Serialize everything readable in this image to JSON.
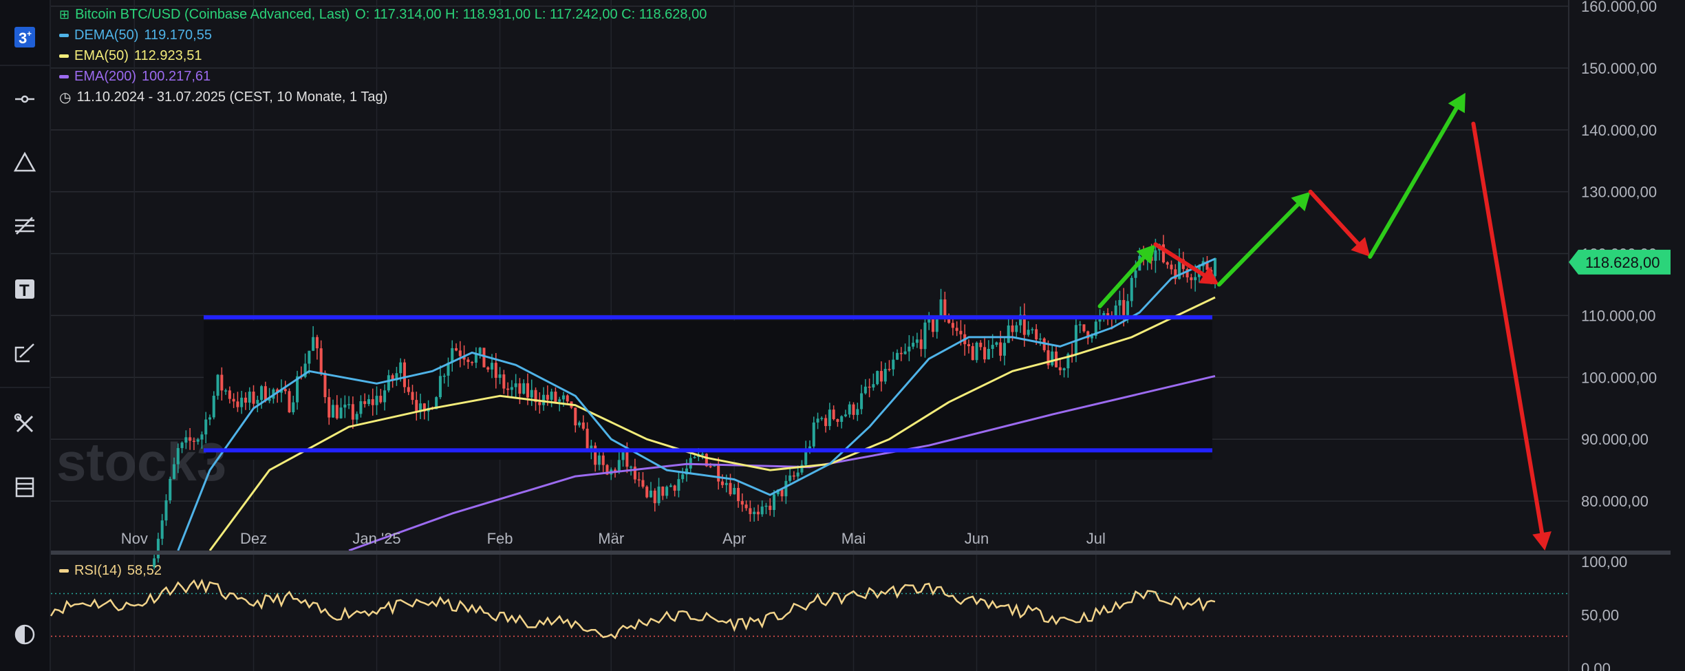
{
  "legend": {
    "title": "Bitcoin BTC/USD (Coinbase Advanced, Last)",
    "ohlc": "O: 117.314,00   H: 118.931,00   L: 117.242,00   C: 118.628,00",
    "indicators": [
      {
        "name": "DEMA(50)",
        "value": "119.170,55",
        "color": "#4fb3e8"
      },
      {
        "name": "EMA(50)",
        "value": "112.923,51",
        "color": "#f3ec7a"
      },
      {
        "name": "EMA(200)",
        "value": "100.217,61",
        "color": "#9c6bf0"
      }
    ],
    "range": "11.10.2024 - 31.07.2025   (CEST, 10 Monate, 1 Tag)"
  },
  "watermark": "stock3",
  "current_price": "118.628,00",
  "rsi_legend": {
    "name": "RSI(14)",
    "value": "58,52"
  },
  "colors": {
    "up": "#26a69a",
    "down": "#ef5350",
    "blue_line": "#2222ff",
    "arrow_green": "#2ecc1a",
    "arrow_red": "#e52020",
    "price_tag": "#2bd47a"
  },
  "chart_data": {
    "type": "candlestick",
    "x_range": [
      "2024-10-11",
      "2025-07-31"
    ],
    "y_range": [
      72000,
      161000
    ],
    "months": [
      "Nov",
      "Dez",
      "Jan '25",
      "Feb",
      "Mär",
      "Apr",
      "Mai",
      "Jun",
      "Jul"
    ],
    "y_ticks": [
      "80.000,00",
      "90.000,00",
      "100.000,00",
      "110.000,00",
      "120.000,00",
      "130.000,00",
      "140.000,00",
      "150.000,00",
      "160.000,00"
    ],
    "close_series": [
      [
        "2024-11-06",
        72000
      ],
      [
        "2024-11-12",
        88000
      ],
      [
        "2024-11-18",
        91000
      ],
      [
        "2024-11-22",
        99000
      ],
      [
        "2024-11-28",
        95500
      ],
      [
        "2024-12-05",
        98000
      ],
      [
        "2024-12-10",
        96000
      ],
      [
        "2024-12-16",
        106000
      ],
      [
        "2024-12-20",
        95000
      ],
      [
        "2024-12-26",
        94000
      ],
      [
        "2025-01-02",
        97000
      ],
      [
        "2025-01-07",
        101500
      ],
      [
        "2025-01-13",
        93000
      ],
      [
        "2025-01-20",
        105000
      ],
      [
        "2025-01-27",
        103000
      ],
      [
        "2025-02-03",
        98000
      ],
      [
        "2025-02-10",
        97000
      ],
      [
        "2025-02-17",
        96000
      ],
      [
        "2025-02-24",
        88000
      ],
      [
        "2025-02-28",
        84000
      ],
      [
        "2025-03-04",
        87000
      ],
      [
        "2025-03-10",
        80000
      ],
      [
        "2025-03-17",
        83000
      ],
      [
        "2025-03-24",
        87500
      ],
      [
        "2025-03-31",
        82500
      ],
      [
        "2025-04-07",
        77000
      ],
      [
        "2025-04-10",
        79500
      ],
      [
        "2025-04-17",
        84500
      ],
      [
        "2025-04-22",
        93000
      ],
      [
        "2025-04-30",
        94500
      ],
      [
        "2025-05-08",
        100000
      ],
      [
        "2025-05-14",
        103500
      ],
      [
        "2025-05-21",
        108500
      ],
      [
        "2025-05-23",
        111500
      ],
      [
        "2025-05-30",
        104500
      ],
      [
        "2025-06-06",
        104000
      ],
      [
        "2025-06-11",
        110000
      ],
      [
        "2025-06-17",
        104500
      ],
      [
        "2025-06-22",
        101000
      ],
      [
        "2025-06-26",
        107000
      ],
      [
        "2025-07-03",
        109000
      ],
      [
        "2025-07-09",
        111500
      ],
      [
        "2025-07-11",
        117500
      ],
      [
        "2025-07-14",
        121500
      ],
      [
        "2025-07-20",
        118000
      ],
      [
        "2025-07-26",
        117500
      ],
      [
        "2025-07-31",
        118628
      ]
    ],
    "dema50": [
      [
        "2024-11-12",
        72000
      ],
      [
        "2024-11-20",
        85000
      ],
      [
        "2024-12-01",
        95000
      ],
      [
        "2024-12-15",
        101000
      ],
      [
        "2025-01-01",
        99000
      ],
      [
        "2025-01-15",
        101000
      ],
      [
        "2025-01-25",
        104000
      ],
      [
        "2025-02-05",
        102000
      ],
      [
        "2025-02-20",
        97000
      ],
      [
        "2025-03-01",
        90000
      ],
      [
        "2025-03-15",
        85000
      ],
      [
        "2025-04-01",
        83500
      ],
      [
        "2025-04-10",
        81000
      ],
      [
        "2025-04-25",
        86000
      ],
      [
        "2025-05-05",
        92000
      ],
      [
        "2025-05-20",
        103000
      ],
      [
        "2025-05-30",
        106500
      ],
      [
        "2025-06-10",
        106500
      ],
      [
        "2025-06-22",
        105000
      ],
      [
        "2025-07-05",
        108000
      ],
      [
        "2025-07-12",
        110500
      ],
      [
        "2025-07-20",
        116000
      ],
      [
        "2025-07-31",
        119170
      ]
    ],
    "ema50": [
      [
        "2024-11-20",
        72000
      ],
      [
        "2024-12-05",
        85000
      ],
      [
        "2024-12-25",
        92000
      ],
      [
        "2025-01-15",
        95000
      ],
      [
        "2025-02-01",
        97000
      ],
      [
        "2025-02-20",
        95500
      ],
      [
        "2025-03-10",
        90000
      ],
      [
        "2025-03-25",
        87000
      ],
      [
        "2025-04-10",
        85000
      ],
      [
        "2025-04-25",
        86000
      ],
      [
        "2025-05-10",
        90000
      ],
      [
        "2025-05-25",
        96000
      ],
      [
        "2025-06-10",
        101000
      ],
      [
        "2025-06-25",
        103500
      ],
      [
        "2025-07-10",
        106500
      ],
      [
        "2025-07-31",
        112924
      ]
    ],
    "ema200": [
      [
        "2024-12-25",
        72000
      ],
      [
        "2025-01-20",
        78000
      ],
      [
        "2025-02-20",
        84000
      ],
      [
        "2025-03-20",
        86000
      ],
      [
        "2025-04-20",
        85500
      ],
      [
        "2025-05-20",
        89000
      ],
      [
        "2025-06-20",
        94000
      ],
      [
        "2025-07-31",
        100218
      ]
    ],
    "support_line": 88200,
    "resistance_line": 109700,
    "projection_arrows": [
      {
        "color": "green",
        "from": [
          "2025-07-02",
          111500
        ],
        "to": [
          "2025-07-16",
          121500
        ]
      },
      {
        "color": "red",
        "from": [
          "2025-07-16",
          121500
        ],
        "to": [
          "2025-08-01",
          115000
        ]
      },
      {
        "color": "green",
        "from": [
          "2025-08-01",
          115000
        ],
        "to": [
          "2025-08-24",
          130000
        ]
      },
      {
        "color": "red",
        "from": [
          "2025-08-24",
          130000
        ],
        "to": [
          "2025-09-08",
          119500
        ]
      },
      {
        "color": "green",
        "from": [
          "2025-09-08",
          119500
        ],
        "to": [
          "2025-10-02",
          146000
        ]
      },
      {
        "color": "red",
        "from": [
          "2025-10-04",
          141000
        ],
        "to": [
          "2025-10-22",
          72000
        ]
      }
    ],
    "rsi": {
      "y_ticks": [
        "100,00",
        "50,00",
        "0,00"
      ],
      "overbought": 70,
      "oversold": 30,
      "series": [
        [
          "2024-10-11",
          55
        ],
        [
          "2024-10-20",
          62
        ],
        [
          "2024-11-01",
          58
        ],
        [
          "2024-11-10",
          75
        ],
        [
          "2024-11-20",
          78
        ],
        [
          "2024-11-28",
          60
        ],
        [
          "2024-12-10",
          66
        ],
        [
          "2024-12-20",
          50
        ],
        [
          "2025-01-01",
          55
        ],
        [
          "2025-01-15",
          62
        ],
        [
          "2025-01-25",
          55
        ],
        [
          "2025-02-05",
          45
        ],
        [
          "2025-02-20",
          42
        ],
        [
          "2025-02-28",
          30
        ],
        [
          "2025-03-10",
          45
        ],
        [
          "2025-03-20",
          50
        ],
        [
          "2025-04-01",
          42
        ],
        [
          "2025-04-10",
          46
        ],
        [
          "2025-04-22",
          63
        ],
        [
          "2025-05-05",
          70
        ],
        [
          "2025-05-20",
          76
        ],
        [
          "2025-06-01",
          60
        ],
        [
          "2025-06-15",
          52
        ],
        [
          "2025-06-25",
          45
        ],
        [
          "2025-07-05",
          55
        ],
        [
          "2025-07-14",
          72
        ],
        [
          "2025-07-22",
          62
        ],
        [
          "2025-07-31",
          58.52
        ]
      ]
    }
  }
}
